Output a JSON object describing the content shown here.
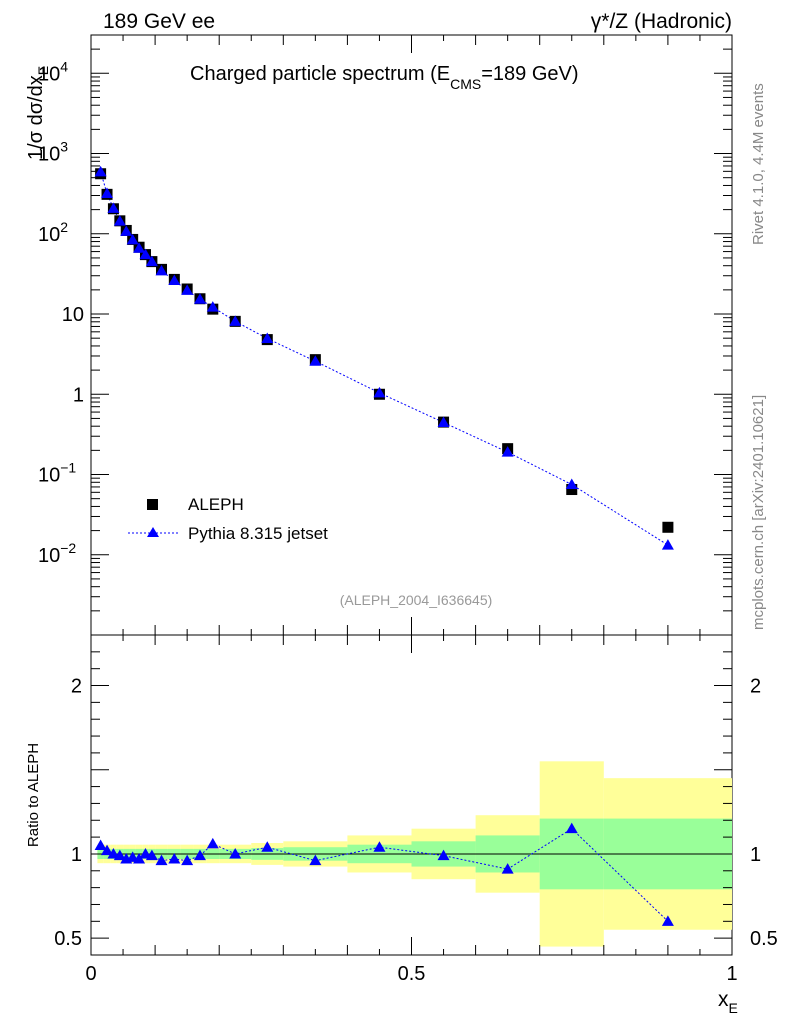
{
  "header": {
    "left": "189 GeV ee",
    "right": "γ*/Z (Hadronic)"
  },
  "side": {
    "rivet": "Rivet 4.1.0,  4.4M events",
    "mcplots": "mcplots.cern.ch [arXiv:2401.10621]"
  },
  "title": {
    "main": "Charged particle spectrum (E",
    "sub": "CMS",
    "tail": "=189 GeV)"
  },
  "watermark": "(ALEPH_2004_I636645)",
  "ylabel": {
    "prefix": "1/σ  dσ/dx",
    "sub": "E"
  },
  "xlabel": {
    "main": "x",
    "sub": "E"
  },
  "ratio_ylabel": "Ratio to ALEPH",
  "legend": {
    "data": "ALEPH",
    "mc": "Pythia 8.315 jetset"
  },
  "top_ticks": {
    "plain": [
      "10",
      "1"
    ],
    "pow_base": "10",
    "pow_exps": [
      "4",
      "3",
      "2",
      "−1",
      "−2"
    ]
  },
  "ratio_ticks": [
    "2",
    "1",
    "0.5"
  ],
  "x_ticks": [
    "0",
    "0.5",
    "1"
  ],
  "colors": {
    "data": "#000000",
    "mc": "#0000ff",
    "band_inner": "#99ff99",
    "band_outer": "#ffff99",
    "watermark": "#999999",
    "side_text": "#888888"
  },
  "chart_data": {
    "type": "scatter",
    "x_range": [
      0,
      1
    ],
    "y_range_log": [
      0.001,
      30000
    ],
    "ratio_range": [
      0.4,
      2.3
    ],
    "x": [
      0.015,
      0.025,
      0.035,
      0.045,
      0.055,
      0.065,
      0.075,
      0.085,
      0.095,
      0.11,
      0.13,
      0.15,
      0.17,
      0.19,
      0.225,
      0.275,
      0.35,
      0.45,
      0.55,
      0.65,
      0.75,
      0.9
    ],
    "x_edges": [
      0.01,
      0.02,
      0.03,
      0.04,
      0.05,
      0.06,
      0.07,
      0.08,
      0.09,
      0.1,
      0.12,
      0.14,
      0.16,
      0.18,
      0.2,
      0.25,
      0.3,
      0.4,
      0.5,
      0.6,
      0.7,
      0.8,
      1.0
    ],
    "series": [
      {
        "name": "ALEPH",
        "marker": "square",
        "values": [
          560,
          310,
          205,
          145,
          110,
          85,
          68,
          55,
          45,
          36,
          27,
          20.5,
          15.5,
          11.5,
          8.1,
          4.8,
          2.7,
          1.0,
          0.45,
          0.21,
          0.065,
          0.022
        ]
      },
      {
        "name": "Pythia 8.315 jetset",
        "marker": "triangle",
        "line": "dotted",
        "values": [
          590,
          318,
          207,
          144,
          107,
          84,
          66,
          55,
          45,
          34.5,
          26.2,
          19.7,
          15.3,
          12.2,
          8.1,
          4.95,
          2.58,
          1.04,
          0.445,
          0.19,
          0.075,
          0.0132
        ]
      }
    ],
    "ratio": {
      "ylabel": "Ratio to ALEPH",
      "values": [
        1.05,
        1.02,
        1.0,
        0.99,
        0.97,
        0.98,
        0.97,
        1.0,
        0.99,
        0.96,
        0.97,
        0.96,
        0.99,
        1.06,
        1.0,
        1.04,
        0.96,
        1.04,
        0.99,
        0.91,
        1.15,
        0.6
      ],
      "band_inner": [
        0.03,
        0.03,
        0.03,
        0.03,
        0.03,
        0.03,
        0.03,
        0.03,
        0.03,
        0.03,
        0.03,
        0.03,
        0.03,
        0.03,
        0.03,
        0.035,
        0.04,
        0.055,
        0.075,
        0.11,
        0.21,
        0.21
      ],
      "band_outer": [
        0.055,
        0.055,
        0.055,
        0.055,
        0.055,
        0.055,
        0.055,
        0.055,
        0.055,
        0.055,
        0.055,
        0.055,
        0.055,
        0.055,
        0.055,
        0.065,
        0.075,
        0.11,
        0.15,
        0.23,
        0.55,
        0.45
      ]
    },
    "title": "Charged particle spectrum (E_CMS=189 GeV)",
    "xlabel": "x_E",
    "ylabel": "1/σ dσ/dx_E",
    "legend_position": "bottom-left"
  }
}
